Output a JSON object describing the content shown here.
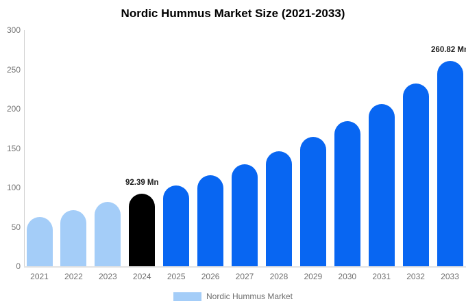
{
  "header": {
    "title": "Nordic Hummus Market Size (2021-2033)"
  },
  "legend": {
    "label": "Nordic Hummus Market",
    "swatch_color": "#a4cdf8",
    "position": "bottom"
  },
  "colors": {
    "historical_bar": "#a4cdf8",
    "highlight_bar": "#000000",
    "forecast_bar": "#0866f2",
    "axis_line": "#cfcfcf",
    "tick_text": "#757575",
    "year_text": "#6e6e6e",
    "annotation_text": "#1a1a1a",
    "title_text": "#000000"
  },
  "chart_data": {
    "type": "bar",
    "title": "Nordic Hummus Market Size (2021-2033)",
    "xlabel": "",
    "ylabel": "",
    "unit": "Mn",
    "categories": [
      "2021",
      "2022",
      "2023",
      "2024",
      "2025",
      "2026",
      "2027",
      "2028",
      "2029",
      "2030",
      "2031",
      "2032",
      "2033"
    ],
    "values": [
      63,
      71.5,
      82,
      92.39,
      102.5,
      116,
      129.5,
      146,
      164,
      184.5,
      206.5,
      232,
      260.82
    ],
    "bar_colors": [
      "#a4cdf8",
      "#a4cdf8",
      "#a4cdf8",
      "#000000",
      "#0866f2",
      "#0866f2",
      "#0866f2",
      "#0866f2",
      "#0866f2",
      "#0866f2",
      "#0866f2",
      "#0866f2",
      "#0866f2"
    ],
    "yticks": [
      0,
      50,
      100,
      150,
      200,
      250,
      300
    ],
    "ylim": [
      0,
      300
    ],
    "grid": false,
    "legend_position": "bottom",
    "legend_entries": [
      "Nordic Hummus Market"
    ],
    "annotations": [
      {
        "category": "2024",
        "text": "92.39 Mn"
      },
      {
        "category": "2033",
        "text": "260.82 Mn"
      }
    ]
  }
}
